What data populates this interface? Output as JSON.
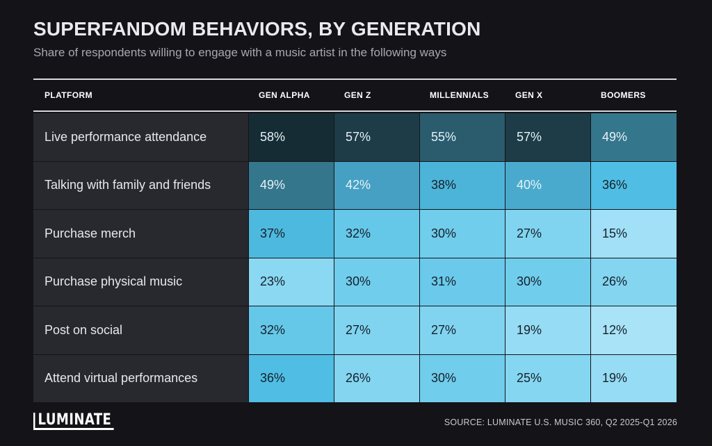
{
  "header": {
    "title": "SUPERFANDOM BEHAVIORS, BY GENERATION",
    "subtitle": "Share of respondents willing to engage with a music artist in the following ways"
  },
  "chart_data": {
    "type": "table",
    "title": "SUPERFANDOM BEHAVIORS, BY GENERATION",
    "subtitle": "Share of respondents willing to engage with a music artist in the following ways",
    "row_header": "PLATFORM",
    "columns": [
      "GEN ALPHA",
      "GEN Z",
      "MILLENNIALS",
      "GEN X",
      "BOOMERS"
    ],
    "rows": [
      {
        "label": "Live performance attendance",
        "values": [
          "58%",
          "57%",
          "55%",
          "57%",
          "49%"
        ]
      },
      {
        "label": "Talking with family and friends",
        "values": [
          "49%",
          "42%",
          "38%",
          "40%",
          "36%"
        ]
      },
      {
        "label": "Purchase merch",
        "values": [
          "37%",
          "32%",
          "30%",
          "27%",
          "15%"
        ]
      },
      {
        "label": "Purchase physical music",
        "values": [
          "23%",
          "30%",
          "31%",
          "30%",
          "26%"
        ]
      },
      {
        "label": "Post on social",
        "values": [
          "32%",
          "27%",
          "27%",
          "19%",
          "12%"
        ]
      },
      {
        "label": "Attend virtual performances",
        "values": [
          "36%",
          "26%",
          "30%",
          "25%",
          "19%"
        ]
      }
    ],
    "color_scale": {
      "high": "#0f2a33",
      "mid_high": "#2e6f84",
      "mid": "#4bb6dd",
      "low": "#a9e3f7"
    }
  },
  "footer": {
    "logo": "LUMINATE",
    "source": "SOURCE: LUMINATE U.S. MUSIC 360, Q2 2025-Q1 2026"
  }
}
